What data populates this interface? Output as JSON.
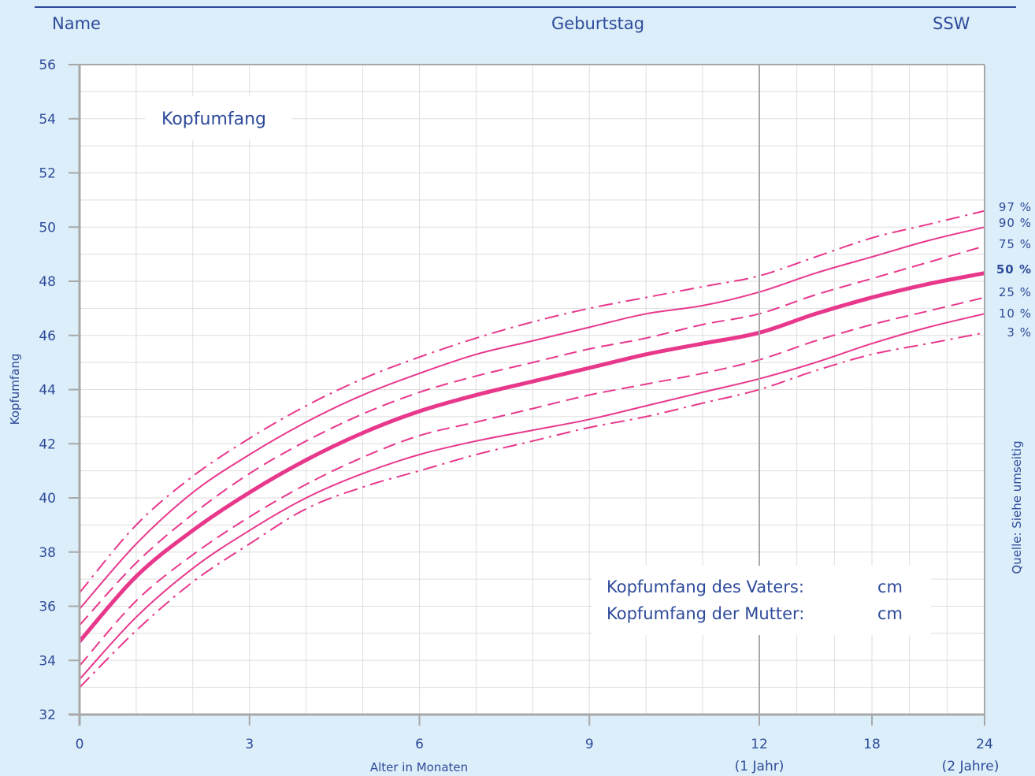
{
  "header": {
    "name_label": "Name",
    "birthday_label": "Geburtstag",
    "ssw_label": "SSW"
  },
  "info_box": {
    "father_label": "Kopfumfang des Vaters:",
    "father_unit": "cm",
    "mother_label": "Kopfumfang der Mutter:",
    "mother_unit": "cm"
  },
  "source_note": "Quelle: Siehe umseitig",
  "colors": {
    "background": "#dceef9",
    "plot_background": "#ffffff",
    "accent_pink": "#e8388c",
    "text_blue": "#2e4b9b",
    "grid": "#dedede",
    "axis": "#a8a8a8"
  },
  "chart_data": {
    "type": "line",
    "title": "Kopfumfang",
    "xlabel": "Alter in Monaten",
    "ylabel": "Kopfumfang",
    "ylim": [
      32,
      56
    ],
    "y_ticks": [
      32,
      34,
      36,
      38,
      40,
      42,
      44,
      46,
      48,
      50,
      52,
      54,
      56
    ],
    "x_ticks": [
      {
        "value": 0,
        "label": "0",
        "sub": ""
      },
      {
        "value": 3,
        "label": "3",
        "sub": ""
      },
      {
        "value": 6,
        "label": "6",
        "sub": ""
      },
      {
        "value": 9,
        "label": "9",
        "sub": ""
      },
      {
        "value": 12,
        "label": "12",
        "sub": "(1 Jahr)"
      },
      {
        "value": 18,
        "label": "18",
        "sub": ""
      },
      {
        "value": 24,
        "label": "24",
        "sub": "(2 Jahre)"
      }
    ],
    "x_scale_note": "linear 0–12 months, then compressed 12–24 months",
    "grid": true,
    "x": [
      0,
      1,
      2,
      3,
      4,
      5,
      6,
      7,
      8,
      9,
      10,
      11,
      12,
      15,
      18,
      21,
      24
    ],
    "series": [
      {
        "name": "97 %",
        "style": "dashdot",
        "bold": false,
        "values": [
          36.5,
          39.0,
          40.8,
          42.2,
          43.4,
          44.4,
          45.2,
          45.9,
          46.5,
          47.0,
          47.4,
          47.8,
          48.2,
          48.9,
          49.6,
          50.1,
          50.6
        ]
      },
      {
        "name": "90 %",
        "style": "solid",
        "bold": false,
        "values": [
          35.9,
          38.3,
          40.2,
          41.6,
          42.8,
          43.8,
          44.6,
          45.3,
          45.8,
          46.3,
          46.8,
          47.1,
          47.6,
          48.3,
          48.9,
          49.5,
          50.0
        ]
      },
      {
        "name": "75 %",
        "style": "dashed",
        "bold": false,
        "values": [
          35.3,
          37.6,
          39.4,
          40.9,
          42.1,
          43.1,
          43.9,
          44.5,
          45.0,
          45.5,
          45.9,
          46.4,
          46.8,
          47.5,
          48.1,
          48.7,
          49.3
        ]
      },
      {
        "name": "50 %",
        "style": "solid",
        "bold": true,
        "values": [
          34.7,
          37.1,
          38.8,
          40.2,
          41.4,
          42.4,
          43.2,
          43.8,
          44.3,
          44.8,
          45.3,
          45.7,
          46.1,
          46.8,
          47.4,
          47.9,
          48.3
        ]
      },
      {
        "name": "25 %",
        "style": "dashed",
        "bold": false,
        "values": [
          33.8,
          36.2,
          37.9,
          39.3,
          40.5,
          41.5,
          42.3,
          42.8,
          43.3,
          43.8,
          44.2,
          44.6,
          45.1,
          45.8,
          46.4,
          46.9,
          47.4
        ]
      },
      {
        "name": "10 %",
        "style": "solid",
        "bold": false,
        "values": [
          33.3,
          35.6,
          37.4,
          38.8,
          40.0,
          40.9,
          41.6,
          42.1,
          42.5,
          42.9,
          43.4,
          43.9,
          44.4,
          45.0,
          45.7,
          46.3,
          46.8
        ]
      },
      {
        "name": "3 %",
        "style": "dashdot",
        "bold": false,
        "values": [
          33.0,
          35.1,
          36.9,
          38.3,
          39.6,
          40.4,
          41.0,
          41.6,
          42.1,
          42.6,
          43.0,
          43.5,
          44.0,
          44.7,
          45.3,
          45.7,
          46.1
        ]
      }
    ]
  }
}
